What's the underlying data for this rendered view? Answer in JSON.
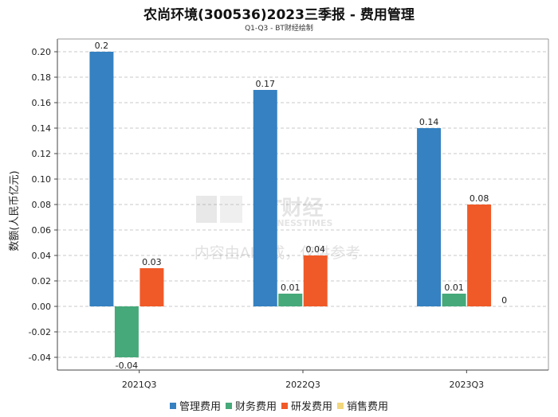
{
  "chart_data": {
    "type": "bar",
    "title": "农尚环境(300536)2023三季报 - 费用管理",
    "subtitle": "Q1-Q3 - BT财经绘制",
    "xlabel": "",
    "ylabel": "数额(人民币亿元)",
    "categories": [
      "2021Q3",
      "2022Q3",
      "2023Q3"
    ],
    "ylim": [
      -0.05,
      0.21
    ],
    "yticks": [
      -0.04,
      -0.02,
      0.0,
      0.02,
      0.04,
      0.06,
      0.08,
      0.1,
      0.12,
      0.14,
      0.16,
      0.18,
      0.2
    ],
    "ytick_labels": [
      "-0.04",
      "-0.02",
      "0.00",
      "0.02",
      "0.04",
      "0.06",
      "0.08",
      "0.10",
      "0.12",
      "0.14",
      "0.16",
      "0.18",
      "0.20"
    ],
    "grid": true,
    "legend_position": "bottom-center",
    "series": [
      {
        "name": "管理费用",
        "color": "#3581c1",
        "values": [
          0.2,
          0.17,
          0.14
        ],
        "labels": [
          "0.2",
          "0.17",
          "0.14"
        ]
      },
      {
        "name": "财务费用",
        "color": "#46a97a",
        "values": [
          -0.04,
          0.01,
          0.01
        ],
        "labels": [
          "-0.04",
          "0.01",
          "0.01"
        ]
      },
      {
        "name": "研发费用",
        "color": "#f05a28",
        "values": [
          0.03,
          0.04,
          0.08
        ],
        "labels": [
          "0.03",
          "0.04",
          "0.08"
        ]
      },
      {
        "name": "销售费用",
        "color": "#f2d77c",
        "values": [
          null,
          null,
          0
        ],
        "labels": [
          "",
          "",
          "0"
        ]
      }
    ]
  },
  "watermark": {
    "brand": "BT财经",
    "brand_en": "BUSINESSTIMES",
    "notice": "内容由AI生成，仅供参考"
  }
}
